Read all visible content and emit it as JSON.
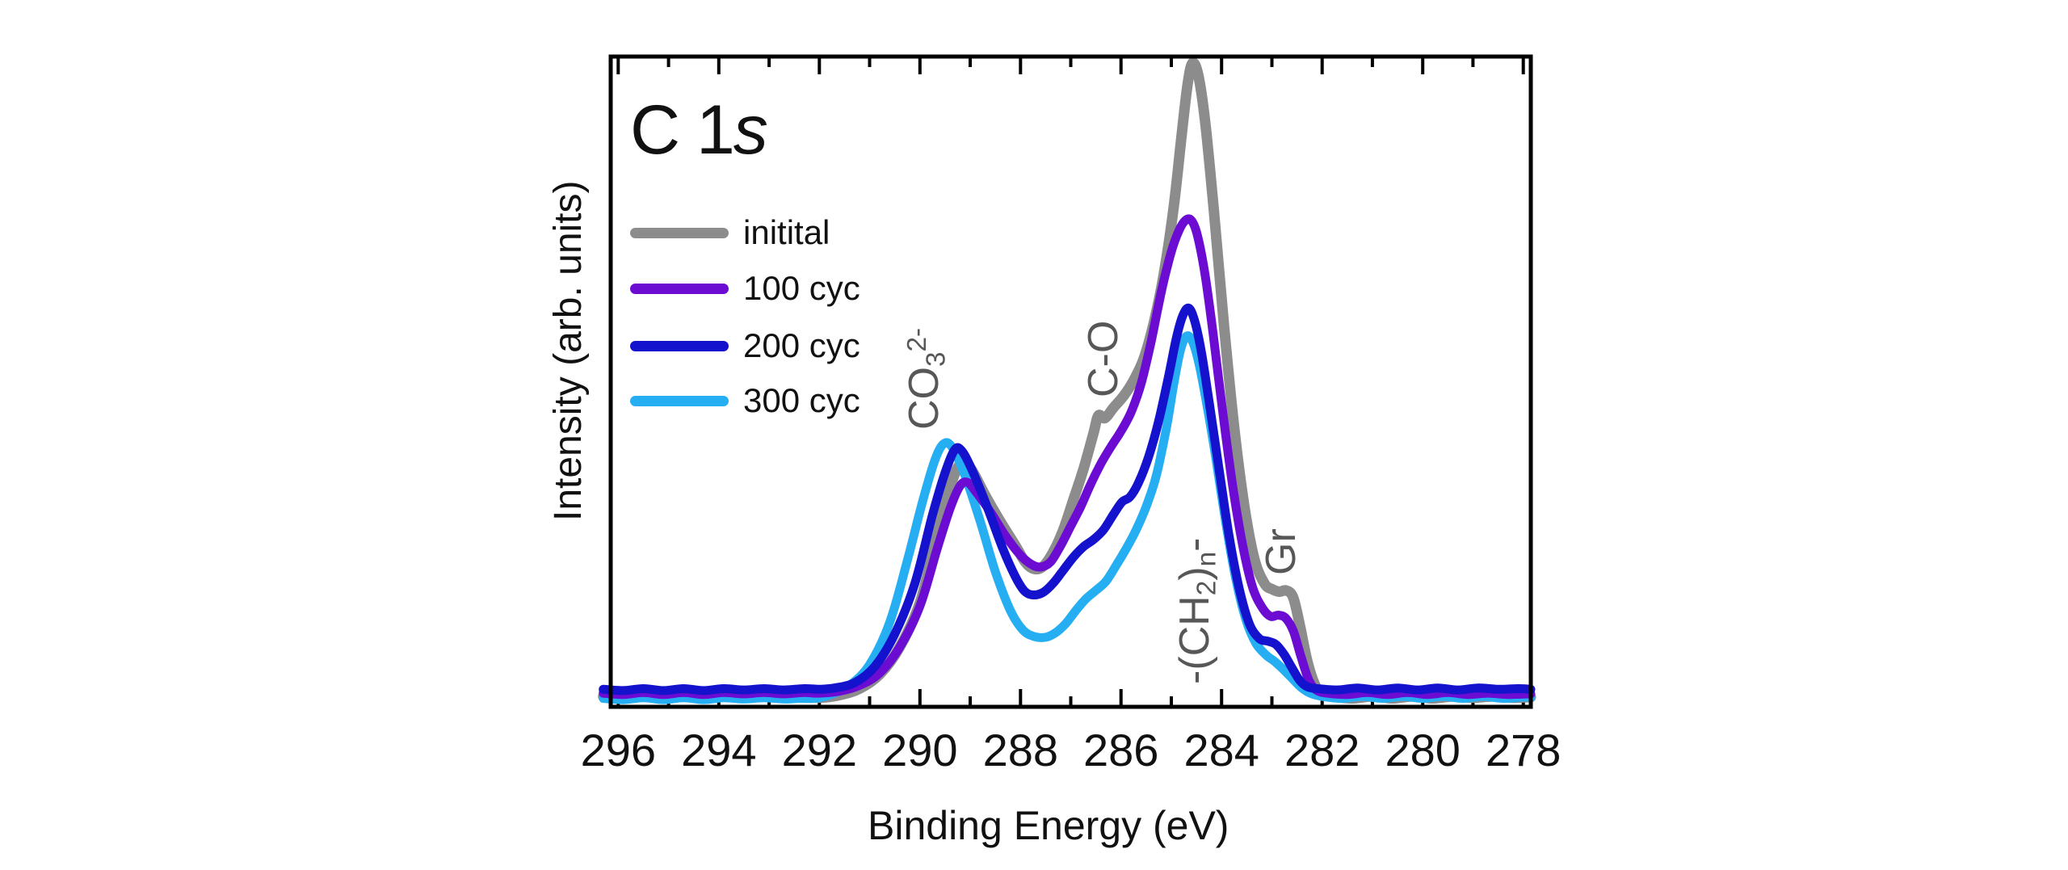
{
  "figure": {
    "title_prefix": "C 1",
    "title_orbital": "s",
    "xlabel": "Binding Energy (eV)",
    "ylabel": "Intensity (arb. units)"
  },
  "colors": {
    "axis": "#000000",
    "text": "#111111",
    "annotation": "#575757",
    "background": "#ffffff"
  },
  "chart_data": {
    "type": "line",
    "title": "C 1s",
    "xlabel": "Binding Energy (eV)",
    "ylabel": "Intensity (arb. units)",
    "x_axis_reversed": true,
    "xlim": [
      296.15,
      277.85
    ],
    "ylim": [
      0,
      1
    ],
    "grid": false,
    "legend_position": "upper-left",
    "xticks_major": [
      296,
      294,
      292,
      290,
      288,
      286,
      284,
      282,
      280,
      278
    ],
    "xticks_minor": [
      295,
      293,
      291,
      289,
      287,
      285,
      283,
      281,
      279
    ],
    "annotations": {
      "co3": {
        "pre": "CO",
        "sub": "3",
        "sup": "2-",
        "x_ev": 289.8
      },
      "c_o": {
        "text": "C-O",
        "x_ev": 286.3
      },
      "ch2": {
        "pre": "-(CH",
        "sub_a": "2",
        "mid": ")",
        "sub_b": "n",
        "post": "-",
        "x_ev": 284.5
      },
      "gr": {
        "text": "Gr",
        "x_ev": 282.8
      }
    },
    "series": [
      {
        "name": "initital",
        "color": "#8c8c8c",
        "stroke_width": 13,
        "points": [
          [
            296.3,
            0.016
          ],
          [
            295.9,
            0.013
          ],
          [
            295.5,
            0.017
          ],
          [
            295.1,
            0.013
          ],
          [
            294.7,
            0.016
          ],
          [
            294.3,
            0.013
          ],
          [
            293.9,
            0.016
          ],
          [
            293.5,
            0.014
          ],
          [
            293.1,
            0.017
          ],
          [
            292.7,
            0.014
          ],
          [
            292.3,
            0.016
          ],
          [
            292.0,
            0.014
          ],
          [
            291.6,
            0.018
          ],
          [
            291.2,
            0.028
          ],
          [
            290.8,
            0.05
          ],
          [
            290.4,
            0.092
          ],
          [
            290.0,
            0.16
          ],
          [
            289.7,
            0.25
          ],
          [
            289.45,
            0.325
          ],
          [
            289.25,
            0.368
          ],
          [
            289.1,
            0.375
          ],
          [
            288.95,
            0.362
          ],
          [
            288.7,
            0.325
          ],
          [
            288.4,
            0.285
          ],
          [
            288.1,
            0.248
          ],
          [
            287.9,
            0.222
          ],
          [
            287.73,
            0.212
          ],
          [
            287.55,
            0.216
          ],
          [
            287.35,
            0.238
          ],
          [
            287.15,
            0.272
          ],
          [
            286.95,
            0.318
          ],
          [
            286.75,
            0.365
          ],
          [
            286.55,
            0.42
          ],
          [
            286.45,
            0.448
          ],
          [
            286.32,
            0.444
          ],
          [
            286.15,
            0.46
          ],
          [
            285.95,
            0.478
          ],
          [
            285.75,
            0.502
          ],
          [
            285.55,
            0.535
          ],
          [
            285.35,
            0.59
          ],
          [
            285.15,
            0.665
          ],
          [
            284.95,
            0.77
          ],
          [
            284.8,
            0.875
          ],
          [
            284.68,
            0.955
          ],
          [
            284.58,
            0.99
          ],
          [
            284.46,
            0.97
          ],
          [
            284.32,
            0.895
          ],
          [
            284.15,
            0.76
          ],
          [
            283.95,
            0.585
          ],
          [
            283.75,
            0.43
          ],
          [
            283.55,
            0.31
          ],
          [
            283.35,
            0.228
          ],
          [
            283.15,
            0.19
          ],
          [
            283.0,
            0.181
          ],
          [
            282.85,
            0.177
          ],
          [
            282.72,
            0.179
          ],
          [
            282.58,
            0.169
          ],
          [
            282.45,
            0.128
          ],
          [
            282.3,
            0.072
          ],
          [
            282.15,
            0.035
          ],
          [
            282.0,
            0.02
          ],
          [
            281.8,
            0.016
          ],
          [
            281.4,
            0.013
          ],
          [
            281.0,
            0.016
          ],
          [
            280.6,
            0.013
          ],
          [
            280.2,
            0.016
          ],
          [
            279.8,
            0.013
          ],
          [
            279.4,
            0.016
          ],
          [
            279.0,
            0.014
          ],
          [
            278.6,
            0.016
          ],
          [
            278.2,
            0.014
          ],
          [
            277.85,
            0.015
          ]
        ]
      },
      {
        "name": "100 cyc",
        "color": "#6c0bd2",
        "stroke_width": 11,
        "points": [
          [
            296.3,
            0.021
          ],
          [
            295.9,
            0.019
          ],
          [
            295.5,
            0.022
          ],
          [
            295.1,
            0.019
          ],
          [
            294.7,
            0.022
          ],
          [
            294.3,
            0.019
          ],
          [
            293.9,
            0.022
          ],
          [
            293.5,
            0.02
          ],
          [
            293.1,
            0.022
          ],
          [
            292.7,
            0.02
          ],
          [
            292.3,
            0.022
          ],
          [
            292.0,
            0.021
          ],
          [
            291.6,
            0.024
          ],
          [
            291.2,
            0.033
          ],
          [
            290.8,
            0.052
          ],
          [
            290.4,
            0.092
          ],
          [
            290.0,
            0.155
          ],
          [
            289.65,
            0.245
          ],
          [
            289.4,
            0.305
          ],
          [
            289.2,
            0.34
          ],
          [
            289.05,
            0.345
          ],
          [
            288.9,
            0.332
          ],
          [
            288.6,
            0.3
          ],
          [
            288.3,
            0.263
          ],
          [
            288.0,
            0.233
          ],
          [
            287.78,
            0.219
          ],
          [
            287.6,
            0.215
          ],
          [
            287.4,
            0.223
          ],
          [
            287.2,
            0.248
          ],
          [
            287.0,
            0.278
          ],
          [
            286.8,
            0.308
          ],
          [
            286.6,
            0.343
          ],
          [
            286.4,
            0.374
          ],
          [
            286.2,
            0.4
          ],
          [
            286.0,
            0.424
          ],
          [
            285.8,
            0.453
          ],
          [
            285.6,
            0.497
          ],
          [
            285.4,
            0.562
          ],
          [
            285.2,
            0.638
          ],
          [
            285.0,
            0.7
          ],
          [
            284.85,
            0.732
          ],
          [
            284.72,
            0.748
          ],
          [
            284.6,
            0.748
          ],
          [
            284.48,
            0.725
          ],
          [
            284.33,
            0.665
          ],
          [
            284.17,
            0.575
          ],
          [
            283.98,
            0.455
          ],
          [
            283.78,
            0.34
          ],
          [
            283.58,
            0.248
          ],
          [
            283.38,
            0.183
          ],
          [
            283.18,
            0.151
          ],
          [
            283.02,
            0.139
          ],
          [
            282.87,
            0.141
          ],
          [
            282.72,
            0.136
          ],
          [
            282.57,
            0.116
          ],
          [
            282.42,
            0.077
          ],
          [
            282.27,
            0.042
          ],
          [
            282.12,
            0.026
          ],
          [
            281.9,
            0.021
          ],
          [
            281.5,
            0.019
          ],
          [
            281.1,
            0.022
          ],
          [
            280.7,
            0.019
          ],
          [
            280.3,
            0.022
          ],
          [
            279.9,
            0.019
          ],
          [
            279.5,
            0.022
          ],
          [
            279.1,
            0.019
          ],
          [
            278.7,
            0.021
          ],
          [
            278.3,
            0.019
          ],
          [
            277.85,
            0.02
          ]
        ]
      },
      {
        "name": "200 cyc",
        "color": "#1512ce",
        "stroke_width": 11,
        "points": [
          [
            296.3,
            0.027
          ],
          [
            295.9,
            0.025
          ],
          [
            295.5,
            0.028
          ],
          [
            295.1,
            0.025
          ],
          [
            294.7,
            0.028
          ],
          [
            294.3,
            0.025
          ],
          [
            293.9,
            0.028
          ],
          [
            293.5,
            0.026
          ],
          [
            293.1,
            0.028
          ],
          [
            292.7,
            0.026
          ],
          [
            292.3,
            0.028
          ],
          [
            292.0,
            0.027
          ],
          [
            291.7,
            0.029
          ],
          [
            291.3,
            0.037
          ],
          [
            290.9,
            0.062
          ],
          [
            290.5,
            0.112
          ],
          [
            290.1,
            0.19
          ],
          [
            289.75,
            0.295
          ],
          [
            289.5,
            0.36
          ],
          [
            289.3,
            0.396
          ],
          [
            289.15,
            0.392
          ],
          [
            288.95,
            0.362
          ],
          [
            288.65,
            0.305
          ],
          [
            288.35,
            0.243
          ],
          [
            288.1,
            0.2
          ],
          [
            287.92,
            0.178
          ],
          [
            287.75,
            0.172
          ],
          [
            287.55,
            0.176
          ],
          [
            287.35,
            0.19
          ],
          [
            287.15,
            0.21
          ],
          [
            286.95,
            0.23
          ],
          [
            286.75,
            0.246
          ],
          [
            286.55,
            0.257
          ],
          [
            286.35,
            0.272
          ],
          [
            286.15,
            0.296
          ],
          [
            285.98,
            0.315
          ],
          [
            285.82,
            0.323
          ],
          [
            285.65,
            0.345
          ],
          [
            285.45,
            0.385
          ],
          [
            285.25,
            0.44
          ],
          [
            285.05,
            0.51
          ],
          [
            284.9,
            0.567
          ],
          [
            284.77,
            0.602
          ],
          [
            284.65,
            0.613
          ],
          [
            284.53,
            0.592
          ],
          [
            284.4,
            0.545
          ],
          [
            284.25,
            0.47
          ],
          [
            284.05,
            0.365
          ],
          [
            283.85,
            0.262
          ],
          [
            283.65,
            0.182
          ],
          [
            283.45,
            0.128
          ],
          [
            283.25,
            0.105
          ],
          [
            283.08,
            0.101
          ],
          [
            282.92,
            0.096
          ],
          [
            282.76,
            0.081
          ],
          [
            282.6,
            0.06
          ],
          [
            282.45,
            0.041
          ],
          [
            282.3,
            0.031
          ],
          [
            282.1,
            0.028
          ],
          [
            281.7,
            0.026
          ],
          [
            281.3,
            0.029
          ],
          [
            280.9,
            0.026
          ],
          [
            280.5,
            0.029
          ],
          [
            280.1,
            0.026
          ],
          [
            279.7,
            0.029
          ],
          [
            279.3,
            0.026
          ],
          [
            278.9,
            0.029
          ],
          [
            278.5,
            0.027
          ],
          [
            278.1,
            0.028
          ],
          [
            277.85,
            0.027
          ]
        ]
      },
      {
        "name": "300 cyc",
        "color": "#25aef2",
        "stroke_width": 11,
        "points": [
          [
            296.3,
            0.013
          ],
          [
            295.9,
            0.011
          ],
          [
            295.5,
            0.014
          ],
          [
            295.1,
            0.011
          ],
          [
            294.7,
            0.014
          ],
          [
            294.3,
            0.011
          ],
          [
            293.9,
            0.014
          ],
          [
            293.5,
            0.012
          ],
          [
            293.1,
            0.014
          ],
          [
            292.7,
            0.012
          ],
          [
            292.4,
            0.013
          ],
          [
            292.1,
            0.013
          ],
          [
            291.8,
            0.018
          ],
          [
            291.4,
            0.033
          ],
          [
            291.0,
            0.065
          ],
          [
            290.6,
            0.13
          ],
          [
            290.25,
            0.225
          ],
          [
            289.95,
            0.315
          ],
          [
            289.7,
            0.38
          ],
          [
            289.52,
            0.405
          ],
          [
            289.35,
            0.398
          ],
          [
            289.1,
            0.355
          ],
          [
            288.8,
            0.285
          ],
          [
            288.5,
            0.208
          ],
          [
            288.2,
            0.148
          ],
          [
            287.95,
            0.118
          ],
          [
            287.72,
            0.108
          ],
          [
            287.5,
            0.107
          ],
          [
            287.3,
            0.114
          ],
          [
            287.1,
            0.128
          ],
          [
            286.9,
            0.148
          ],
          [
            286.7,
            0.166
          ],
          [
            286.5,
            0.179
          ],
          [
            286.3,
            0.193
          ],
          [
            286.1,
            0.217
          ],
          [
            285.9,
            0.243
          ],
          [
            285.7,
            0.272
          ],
          [
            285.5,
            0.308
          ],
          [
            285.3,
            0.355
          ],
          [
            285.1,
            0.428
          ],
          [
            284.95,
            0.497
          ],
          [
            284.82,
            0.548
          ],
          [
            284.7,
            0.57
          ],
          [
            284.58,
            0.562
          ],
          [
            284.45,
            0.528
          ],
          [
            284.3,
            0.468
          ],
          [
            284.12,
            0.385
          ],
          [
            283.92,
            0.285
          ],
          [
            283.72,
            0.198
          ],
          [
            283.52,
            0.135
          ],
          [
            283.32,
            0.098
          ],
          [
            283.12,
            0.08
          ],
          [
            282.95,
            0.07
          ],
          [
            282.78,
            0.058
          ],
          [
            282.6,
            0.044
          ],
          [
            282.42,
            0.03
          ],
          [
            282.24,
            0.021
          ],
          [
            282.0,
            0.016
          ],
          [
            281.6,
            0.013
          ],
          [
            281.2,
            0.016
          ],
          [
            280.8,
            0.013
          ],
          [
            280.4,
            0.016
          ],
          [
            280.0,
            0.013
          ],
          [
            279.6,
            0.016
          ],
          [
            279.2,
            0.013
          ],
          [
            278.8,
            0.016
          ],
          [
            278.4,
            0.013
          ],
          [
            278.0,
            0.015
          ],
          [
            277.85,
            0.014
          ]
        ]
      }
    ]
  }
}
